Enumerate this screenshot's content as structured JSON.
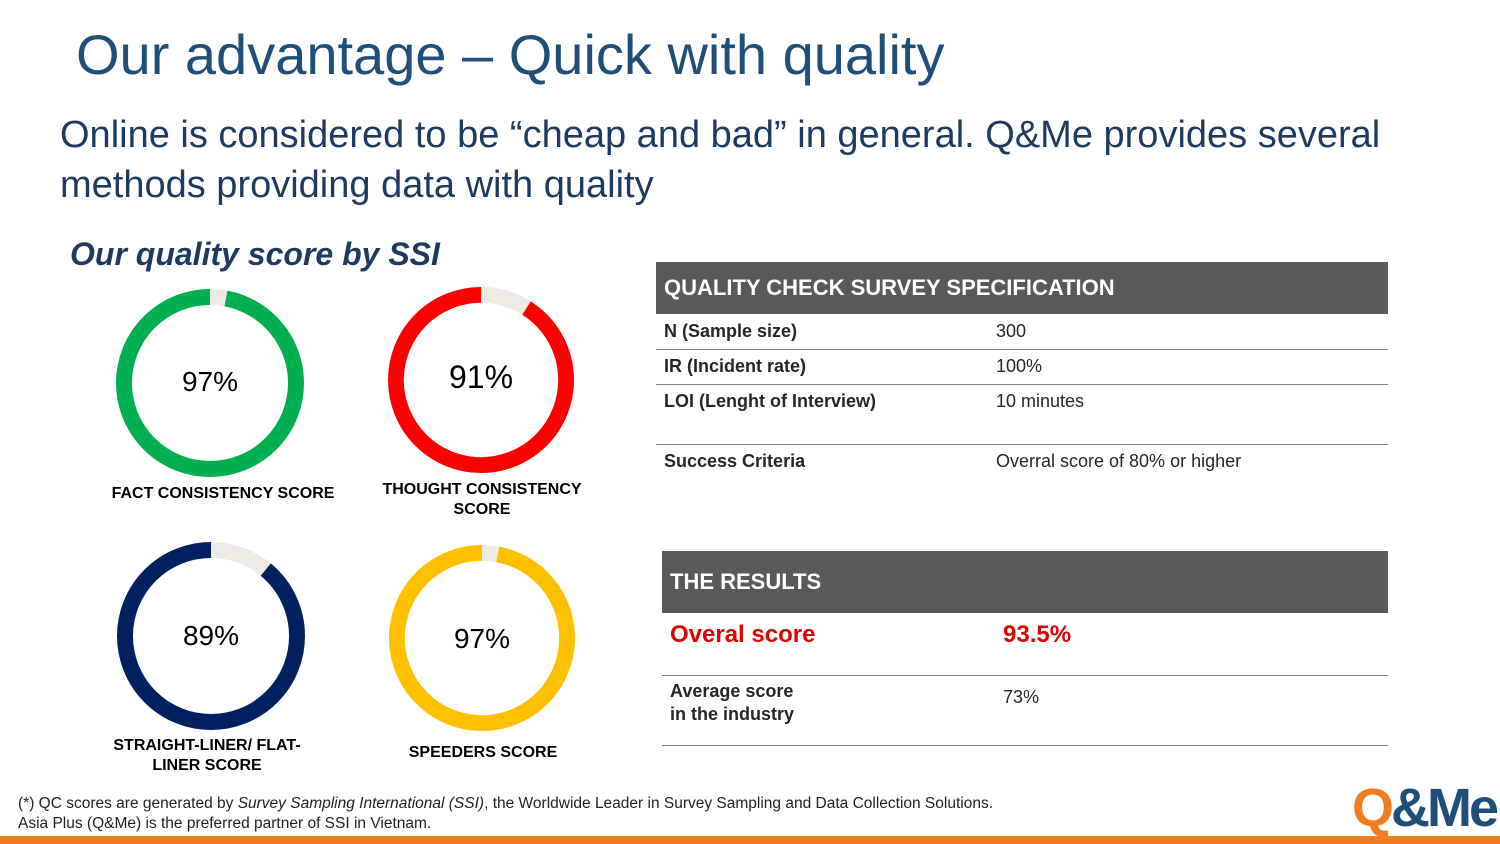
{
  "slide": {
    "title": "Our advantage – Quick with quality",
    "subtitle": "Online is considered to be “cheap and bad” in general. Q&Me provides several methods providing data with quality",
    "section_title": "Our quality score by SSI"
  },
  "chart_data": [
    {
      "type": "pie",
      "title": "FACT CONSISTENCY SCORE",
      "value_label": "97%",
      "values": [
        97,
        3
      ],
      "colors": [
        "#00b050",
        "#eceae3"
      ]
    },
    {
      "type": "pie",
      "title": "THOUGHT CONSISTENCY SCORE",
      "value_label": "91%",
      "values": [
        91,
        9
      ],
      "colors": [
        "#ff0000",
        "#eceae3"
      ]
    },
    {
      "type": "pie",
      "title": "STRAIGHT-LINER/ FLAT-LINER SCORE",
      "value_label": "89%",
      "values": [
        89,
        11
      ],
      "colors": [
        "#002060",
        "#eceae3"
      ]
    },
    {
      "type": "pie",
      "title": "SPEEDERS SCORE",
      "value_label": "97%",
      "values": [
        97,
        3
      ],
      "colors": [
        "#ffc000",
        "#eceae3"
      ]
    }
  ],
  "spec_table": {
    "header": "QUALITY CHECK SURVEY SPECIFICATION",
    "rows": [
      {
        "key": "N (Sample size)",
        "value": "300"
      },
      {
        "key": "IR (Incident rate)",
        "value": "100%"
      },
      {
        "key": "LOI (Lenght of Interview)",
        "value": "10 minutes"
      },
      {
        "key": "Success Criteria",
        "value": "Overral score of 80% or higher"
      }
    ]
  },
  "results_table": {
    "header": "THE RESULTS",
    "overall_label": "Overal score",
    "overall_value": "93.5%",
    "average_label_line1": "Average score",
    "average_label_line2": "in the industry",
    "average_value": "73%"
  },
  "footnote": {
    "prefix": "(*) QC scores are generated by ",
    "italic": "Survey Sampling International (SSI)",
    "suffix": ", the Worldwide Leader in Survey Sampling and Data Collection Solutions. Asia Plus (Q&Me) is the preferred partner of SSI in Vietnam."
  },
  "logo": {
    "text": "Q&Me",
    "color_q": "#f07d22",
    "color_rest": "#1f4e79"
  },
  "colors": {
    "accent": "#f07d22",
    "highlight": "#e00000",
    "header_bg": "#595959"
  }
}
